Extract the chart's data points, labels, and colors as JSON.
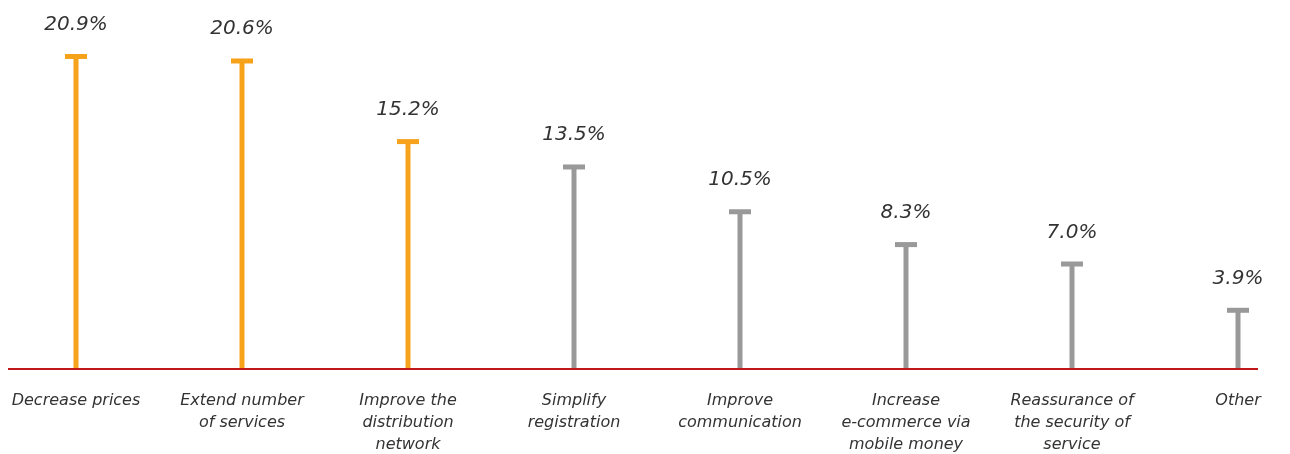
{
  "chart_data": {
    "type": "bar",
    "categories": [
      "Decrease prices",
      "Extend number of services",
      "Improve the distribution network",
      "Simplify registration",
      "Improve communication",
      "Increase e-commerce via mobile money",
      "Reassurance of the security of service",
      "Other"
    ],
    "values": [
      20.9,
      20.6,
      15.2,
      13.5,
      10.5,
      8.3,
      7.0,
      3.9
    ],
    "value_labels": [
      "20.9%",
      "20.6%",
      "15.2%",
      "13.5%",
      "10.5%",
      "8.3%",
      "7.0%",
      "3.9%"
    ],
    "colors": [
      "#f7a21b",
      "#f7a21b",
      "#f7a21b",
      "#999999",
      "#999999",
      "#999999",
      "#999999",
      "#999999"
    ]
  }
}
